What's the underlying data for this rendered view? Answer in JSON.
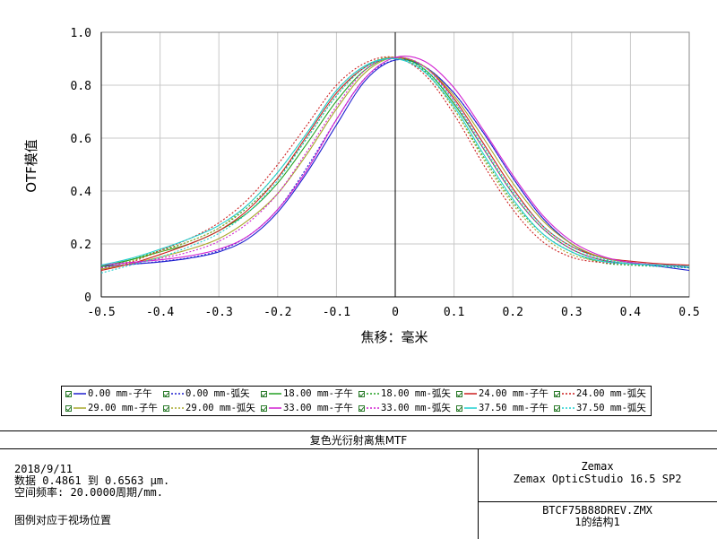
{
  "chart_data": {
    "type": "line",
    "title": "复色光衍射离焦MTF",
    "xlabel": "焦移：毫米",
    "ylabel": "OTF模值",
    "xlim": [
      -0.5,
      0.5
    ],
    "ylim": [
      0,
      1.0
    ],
    "x_ticks": [
      "-0.5",
      "-0.4",
      "-0.3",
      "-0.2",
      "-0.1",
      "0",
      "0.1",
      "0.2",
      "0.3",
      "0.4",
      "0.5"
    ],
    "y_ticks": [
      "0",
      "0.2",
      "0.4",
      "0.6",
      "0.8",
      "1.0"
    ],
    "grid": true,
    "legend_position": "below",
    "x": [
      -0.5,
      -0.45,
      -0.4,
      -0.35,
      -0.3,
      -0.25,
      -0.2,
      -0.15,
      -0.1,
      -0.05,
      0,
      0.05,
      0.1,
      0.15,
      0.2,
      0.25,
      0.3,
      0.35,
      0.4,
      0.45,
      0.5
    ],
    "series": [
      {
        "name": "0.00 mm-子午",
        "color": "#1f1fcf",
        "dash": false,
        "values": [
          0.115,
          0.123,
          0.132,
          0.146,
          0.17,
          0.22,
          0.32,
          0.47,
          0.65,
          0.82,
          0.895,
          0.87,
          0.77,
          0.62,
          0.45,
          0.3,
          0.2,
          0.15,
          0.13,
          0.115,
          0.1
        ]
      },
      {
        "name": "0.00 mm-弧矢",
        "color": "#1f1fcf",
        "dash": true,
        "values": [
          0.11,
          0.122,
          0.134,
          0.148,
          0.175,
          0.23,
          0.33,
          0.49,
          0.67,
          0.83,
          0.895,
          0.87,
          0.77,
          0.62,
          0.45,
          0.3,
          0.2,
          0.15,
          0.13,
          0.12,
          0.11
        ]
      },
      {
        "name": "18.00 mm-子午",
        "color": "#22a022",
        "dash": false,
        "values": [
          0.115,
          0.14,
          0.17,
          0.2,
          0.25,
          0.32,
          0.43,
          0.58,
          0.74,
          0.86,
          0.905,
          0.86,
          0.73,
          0.56,
          0.39,
          0.26,
          0.18,
          0.14,
          0.125,
          0.12,
          0.115
        ]
      },
      {
        "name": "18.00 mm-弧矢",
        "color": "#22a022",
        "dash": true,
        "values": [
          0.11,
          0.14,
          0.175,
          0.21,
          0.26,
          0.34,
          0.45,
          0.6,
          0.76,
          0.87,
          0.905,
          0.855,
          0.71,
          0.53,
          0.36,
          0.24,
          0.17,
          0.13,
          0.12,
          0.115,
          0.11
        ]
      },
      {
        "name": "24.00 mm-子午",
        "color": "#cc1f1f",
        "dash": false,
        "values": [
          0.1,
          0.125,
          0.16,
          0.2,
          0.25,
          0.33,
          0.45,
          0.61,
          0.77,
          0.87,
          0.905,
          0.87,
          0.75,
          0.58,
          0.41,
          0.27,
          0.19,
          0.15,
          0.135,
          0.125,
          0.12
        ]
      },
      {
        "name": "24.00 mm-弧矢",
        "color": "#cc1f1f",
        "dash": true,
        "values": [
          0.1,
          0.13,
          0.175,
          0.22,
          0.28,
          0.37,
          0.5,
          0.65,
          0.8,
          0.885,
          0.905,
          0.84,
          0.69,
          0.5,
          0.33,
          0.21,
          0.15,
          0.13,
          0.125,
          0.12,
          0.12
        ]
      },
      {
        "name": "29.00 mm-子午",
        "color": "#a8a82a",
        "dash": false,
        "values": [
          0.105,
          0.125,
          0.15,
          0.18,
          0.22,
          0.29,
          0.39,
          0.54,
          0.71,
          0.85,
          0.905,
          0.87,
          0.76,
          0.6,
          0.43,
          0.29,
          0.2,
          0.15,
          0.13,
          0.12,
          0.115
        ]
      },
      {
        "name": "29.00 mm-弧矢",
        "color": "#a8a82a",
        "dash": true,
        "values": [
          0.105,
          0.135,
          0.17,
          0.21,
          0.26,
          0.35,
          0.47,
          0.62,
          0.78,
          0.875,
          0.905,
          0.85,
          0.71,
          0.52,
          0.35,
          0.23,
          0.16,
          0.135,
          0.125,
          0.12,
          0.115
        ]
      },
      {
        "name": "33.00 mm-子午",
        "color": "#d11fd1",
        "dash": false,
        "values": [
          0.12,
          0.13,
          0.14,
          0.155,
          0.18,
          0.23,
          0.33,
          0.48,
          0.67,
          0.83,
          0.905,
          0.89,
          0.79,
          0.63,
          0.46,
          0.31,
          0.21,
          0.155,
          0.13,
          0.12,
          0.115
        ]
      },
      {
        "name": "33.00 mm-弧矢",
        "color": "#d11fd1",
        "dash": true,
        "values": [
          0.11,
          0.125,
          0.145,
          0.17,
          0.21,
          0.28,
          0.39,
          0.55,
          0.72,
          0.86,
          0.905,
          0.87,
          0.74,
          0.56,
          0.39,
          0.26,
          0.18,
          0.14,
          0.125,
          0.12,
          0.115
        ]
      },
      {
        "name": "37.50 mm-子午",
        "color": "#1fcfcf",
        "dash": false,
        "values": [
          0.12,
          0.145,
          0.18,
          0.22,
          0.27,
          0.35,
          0.47,
          0.62,
          0.78,
          0.875,
          0.9,
          0.85,
          0.72,
          0.54,
          0.37,
          0.24,
          0.17,
          0.135,
          0.125,
          0.12,
          0.115
        ]
      },
      {
        "name": "37.50 mm-弧矢",
        "color": "#1fcfcf",
        "dash": true,
        "values": [
          0.09,
          0.12,
          0.15,
          0.19,
          0.24,
          0.32,
          0.44,
          0.6,
          0.76,
          0.87,
          0.9,
          0.86,
          0.74,
          0.57,
          0.4,
          0.27,
          0.19,
          0.145,
          0.125,
          0.115,
          0.11
        ]
      }
    ]
  },
  "footer": {
    "title": "复色光衍射离焦MTF",
    "date": "2018/9/11",
    "data_line": "数据 0.4861 到 0.6563 μm.",
    "freq_line": "空间频率: 20.0000周期/mm.",
    "legend_note": "图例对应于视场位置",
    "app_name": "Zemax",
    "app_version": "Zemax OpticStudio 16.5 SP2",
    "file_name": "BTCF75B88DREV.ZMX",
    "config": "1的结构1"
  }
}
